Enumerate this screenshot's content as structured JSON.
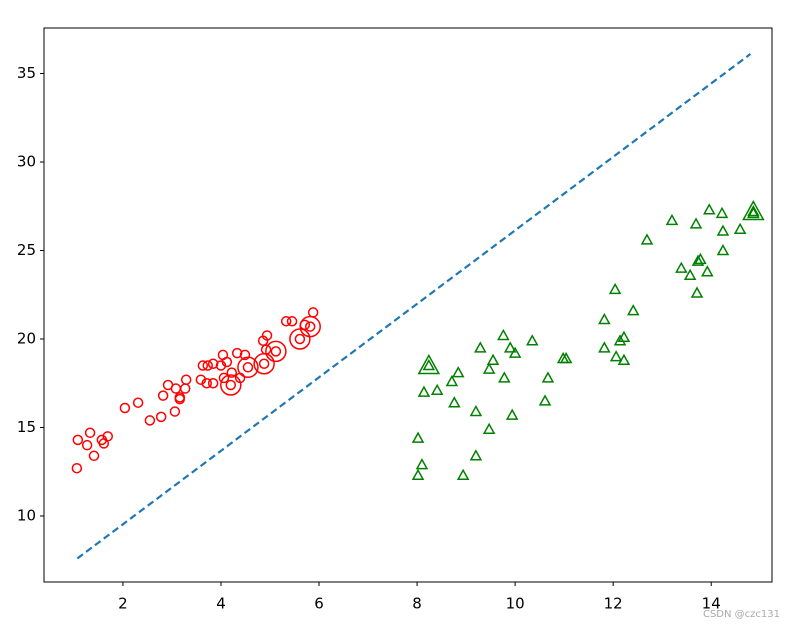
{
  "chart_data": {
    "type": "scatter",
    "xlim": [
      0.39,
      15.24
    ],
    "ylim": [
      6.27,
      37.57
    ],
    "xticks": [
      2,
      4,
      6,
      8,
      10,
      12,
      14
    ],
    "yticks": [
      10,
      15,
      20,
      25,
      30,
      35
    ],
    "series": [
      {
        "marker": "circle",
        "size": "small",
        "color": "#ff0000",
        "x": [
          1.06,
          1.08,
          1.27,
          1.33,
          1.41,
          1.57,
          1.61,
          1.69,
          2.04,
          2.31,
          2.55,
          2.78,
          2.82,
          2.92,
          3.06,
          3.08,
          3.16,
          3.16,
          3.27,
          3.29,
          3.59,
          3.63,
          3.73,
          3.71,
          3.84,
          3.84,
          4.0,
          4.04,
          4.06,
          4.12,
          4.2,
          4.22,
          4.33,
          4.39,
          4.49,
          4.55,
          4.86,
          4.88,
          4.92,
          4.94,
          5.12,
          5.33,
          5.45,
          5.61,
          5.71,
          5.82,
          5.88
        ],
        "y": [
          12.7,
          14.3,
          14.0,
          14.7,
          13.4,
          14.3,
          14.1,
          14.5,
          16.1,
          16.4,
          15.4,
          15.6,
          16.8,
          17.4,
          15.9,
          17.2,
          16.7,
          16.6,
          17.2,
          17.7,
          17.7,
          18.5,
          18.5,
          17.5,
          17.5,
          18.6,
          18.5,
          19.1,
          17.8,
          18.7,
          17.4,
          18.1,
          19.2,
          17.8,
          19.1,
          18.4,
          19.9,
          18.6,
          19.4,
          20.2,
          19.3,
          21.0,
          21.0,
          20.0,
          20.8,
          20.7,
          21.5
        ]
      },
      {
        "marker": "triangle",
        "size": "small",
        "color": "#008000",
        "x": [
          8.02,
          8.02,
          8.1,
          8.14,
          8.24,
          8.41,
          8.71,
          8.76,
          8.84,
          8.94,
          9.2,
          9.2,
          9.29,
          9.47,
          9.47,
          9.55,
          9.76,
          9.78,
          9.9,
          9.94,
          10.0,
          10.35,
          10.61,
          10.67,
          10.98,
          11.04,
          11.82,
          11.82,
          12.04,
          12.06,
          12.14,
          12.22,
          12.22,
          12.41,
          12.69,
          13.2,
          13.39,
          13.57,
          13.69,
          13.71,
          13.73,
          13.78,
          13.92,
          13.96,
          14.22,
          14.24,
          14.24,
          14.59,
          14.86,
          14.86
        ],
        "y": [
          14.4,
          12.3,
          12.9,
          17.0,
          18.5,
          17.1,
          17.6,
          16.4,
          18.1,
          12.3,
          15.9,
          13.4,
          19.5,
          14.9,
          18.3,
          18.8,
          20.2,
          17.8,
          19.5,
          15.7,
          19.2,
          19.9,
          16.5,
          17.8,
          18.9,
          18.9,
          21.1,
          19.5,
          22.8,
          19.0,
          19.9,
          20.1,
          18.8,
          21.6,
          25.6,
          26.7,
          24.0,
          23.6,
          26.5,
          22.6,
          24.4,
          24.5,
          23.8,
          27.3,
          27.1,
          26.1,
          25.0,
          26.2,
          27.2,
          27.1
        ]
      },
      {
        "marker": "circle",
        "size": "large",
        "color": "#ff0000",
        "x": [
          4.2,
          4.55,
          4.88,
          5.12,
          5.61,
          5.82
        ],
        "y": [
          17.4,
          18.4,
          18.6,
          19.3,
          20.0,
          20.7
        ]
      },
      {
        "marker": "triangle",
        "size": "large",
        "color": "#008000",
        "x": [
          8.24,
          14.86
        ],
        "y": [
          18.5,
          27.2
        ]
      }
    ],
    "line": {
      "x": [
        1.07,
        14.8
      ],
      "y": [
        7.6,
        36.1
      ],
      "style": "dashed",
      "color": "#1f77b4"
    },
    "watermark": "CSDN @czc131"
  }
}
